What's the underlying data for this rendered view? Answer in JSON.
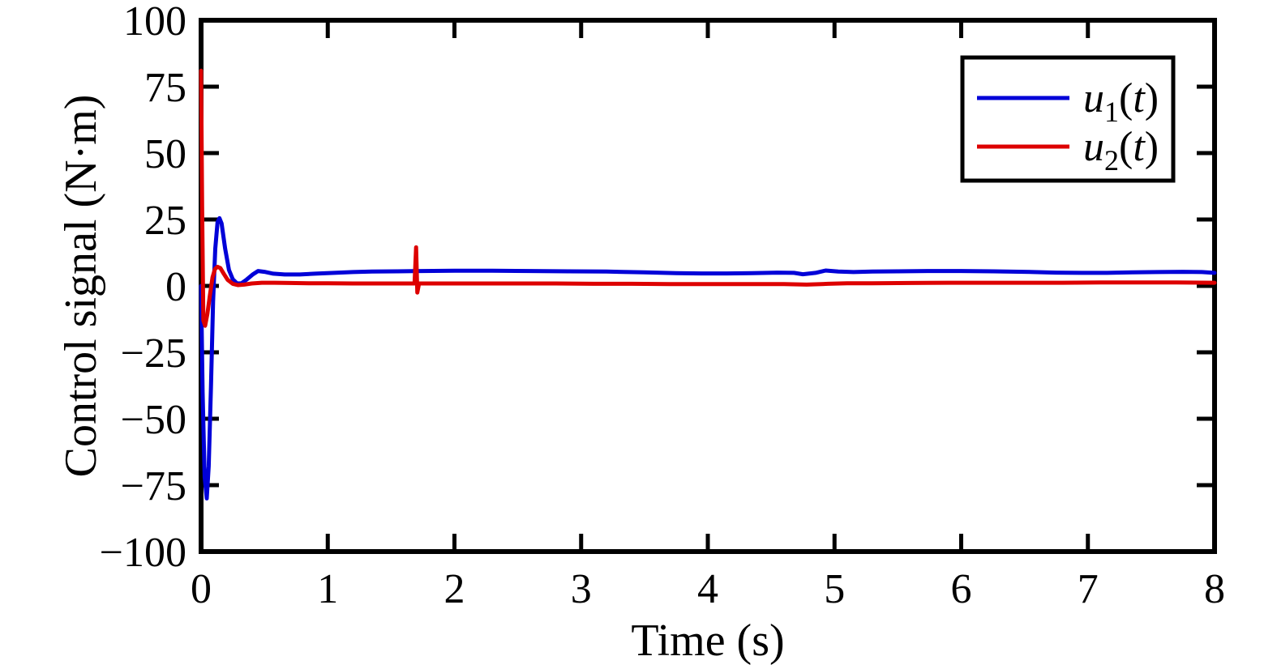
{
  "figure": {
    "background": "#ffffff",
    "frame_color": "#000000"
  },
  "chart_data": {
    "type": "line",
    "xlabel": "Time (s)",
    "ylabel": "Control signal (N·m)",
    "xlim": [
      0,
      8
    ],
    "ylim": [
      -100,
      100
    ],
    "x_ticks": [
      0,
      1,
      2,
      3,
      4,
      5,
      6,
      7,
      8
    ],
    "x_tick_labels": [
      "0",
      "1",
      "2",
      "3",
      "4",
      "5",
      "6",
      "7",
      "8"
    ],
    "y_ticks": [
      -100,
      -75,
      -50,
      -25,
      0,
      25,
      50,
      75,
      100
    ],
    "y_tick_labels": [
      "−100",
      "−75",
      "−50",
      "−25",
      "0",
      "25",
      "50",
      "75",
      "100"
    ],
    "grid": false,
    "frame": "full box with inward ticks on all four sides",
    "legend": {
      "position": "top-right",
      "border_color": "#000000",
      "entries": [
        {
          "label": "u1(t)",
          "label_rich": {
            "base": "u",
            "sub": "1",
            "arg": "t"
          },
          "color": "#0000d8"
        },
        {
          "label": "u2(t)",
          "label_rich": {
            "base": "u",
            "sub": "2",
            "arg": "t"
          },
          "color": "#dd0000"
        }
      ]
    },
    "series": [
      {
        "name": "u1(t)",
        "color": "#0000d8",
        "points": [
          [
            0,
            0
          ],
          [
            0.012,
            -40
          ],
          [
            0.028,
            -72
          ],
          [
            0.045,
            -80
          ],
          [
            0.06,
            -68
          ],
          [
            0.078,
            -38
          ],
          [
            0.095,
            -6
          ],
          [
            0.112,
            14
          ],
          [
            0.13,
            24
          ],
          [
            0.145,
            25.5
          ],
          [
            0.162,
            23.5
          ],
          [
            0.19,
            14
          ],
          [
            0.22,
            6
          ],
          [
            0.25,
            2.5
          ],
          [
            0.285,
            0.9
          ],
          [
            0.32,
            1
          ],
          [
            0.36,
            2.4
          ],
          [
            0.41,
            4.4
          ],
          [
            0.45,
            5.6
          ],
          [
            0.5,
            5.3
          ],
          [
            0.57,
            4.6
          ],
          [
            0.66,
            4.3
          ],
          [
            0.78,
            4.3
          ],
          [
            0.9,
            4.6
          ],
          [
            1.05,
            4.9
          ],
          [
            1.2,
            5.2
          ],
          [
            1.35,
            5.4
          ],
          [
            1.55,
            5.5
          ],
          [
            1.75,
            5.6
          ],
          [
            2,
            5.7
          ],
          [
            2.3,
            5.7
          ],
          [
            2.6,
            5.6
          ],
          [
            2.9,
            5.5
          ],
          [
            3.2,
            5.4
          ],
          [
            3.5,
            5.1
          ],
          [
            3.75,
            4.8
          ],
          [
            3.95,
            4.7
          ],
          [
            4.15,
            4.7
          ],
          [
            4.35,
            4.8
          ],
          [
            4.55,
            5
          ],
          [
            4.68,
            4.9
          ],
          [
            4.75,
            4.4
          ],
          [
            4.85,
            4.9
          ],
          [
            4.93,
            5.8
          ],
          [
            5.03,
            5.4
          ],
          [
            5.15,
            5.2
          ],
          [
            5.3,
            5.4
          ],
          [
            5.5,
            5.5
          ],
          [
            5.75,
            5.6
          ],
          [
            6,
            5.6
          ],
          [
            6.25,
            5.5
          ],
          [
            6.5,
            5.3
          ],
          [
            6.75,
            5
          ],
          [
            6.95,
            4.9
          ],
          [
            7.15,
            4.9
          ],
          [
            7.35,
            5.1
          ],
          [
            7.55,
            5.2
          ],
          [
            7.75,
            5.3
          ],
          [
            7.9,
            5.2
          ],
          [
            8,
            4.9
          ]
        ]
      },
      {
        "name": "u2(t)",
        "color": "#dd0000",
        "points": [
          [
            0,
            81
          ],
          [
            0.008,
            30
          ],
          [
            0.018,
            -13
          ],
          [
            0.032,
            -15
          ],
          [
            0.05,
            -10.5
          ],
          [
            0.07,
            -3.5
          ],
          [
            0.09,
            3.2
          ],
          [
            0.11,
            6.4
          ],
          [
            0.13,
            7.2
          ],
          [
            0.152,
            6.7
          ],
          [
            0.18,
            4.5
          ],
          [
            0.21,
            2.3
          ],
          [
            0.25,
            0.8
          ],
          [
            0.29,
            0.3
          ],
          [
            0.34,
            0.5
          ],
          [
            0.4,
            0.9
          ],
          [
            0.48,
            1.2
          ],
          [
            0.58,
            1.2
          ],
          [
            0.7,
            1.1
          ],
          [
            0.85,
            1
          ],
          [
            1,
            1
          ],
          [
            1.2,
            0.9
          ],
          [
            1.4,
            0.9
          ],
          [
            1.6,
            0.9
          ],
          [
            1.685,
            0.9
          ],
          [
            1.697,
            14.5
          ],
          [
            1.707,
            -2.5
          ],
          [
            1.72,
            0.9
          ],
          [
            1.9,
            0.9
          ],
          [
            2.2,
            0.9
          ],
          [
            2.5,
            0.9
          ],
          [
            2.8,
            0.9
          ],
          [
            3.1,
            0.8
          ],
          [
            3.4,
            0.8
          ],
          [
            3.7,
            0.7
          ],
          [
            4,
            0.7
          ],
          [
            4.3,
            0.7
          ],
          [
            4.6,
            0.7
          ],
          [
            4.78,
            0.5
          ],
          [
            4.95,
            0.8
          ],
          [
            5.1,
            1
          ],
          [
            5.3,
            1
          ],
          [
            5.6,
            1.1
          ],
          [
            5.9,
            1.2
          ],
          [
            6.2,
            1.2
          ],
          [
            6.5,
            1.2
          ],
          [
            6.8,
            1.2
          ],
          [
            7.1,
            1.3
          ],
          [
            7.4,
            1.3
          ],
          [
            7.7,
            1.3
          ],
          [
            8,
            1.2
          ]
        ]
      }
    ]
  }
}
